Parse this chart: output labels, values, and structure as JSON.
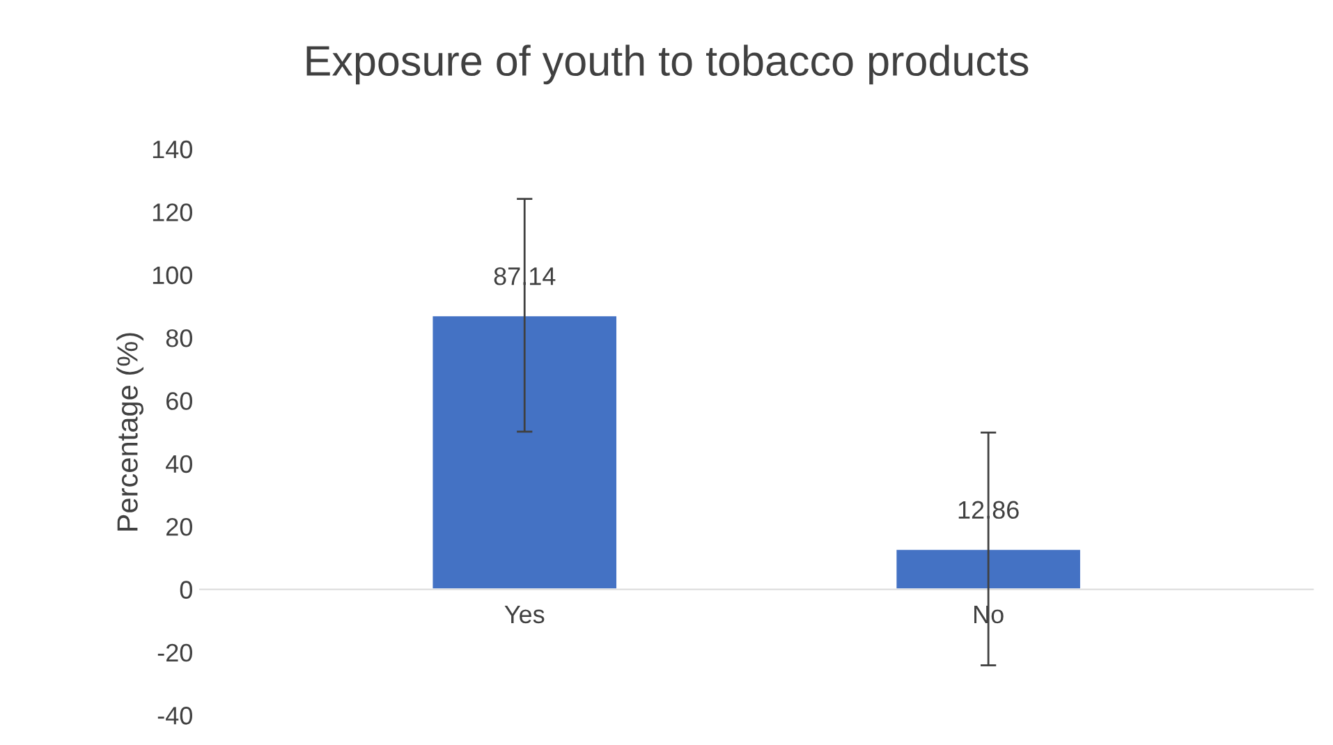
{
  "chart_data": {
    "type": "bar",
    "title": "Exposure of youth to tobacco products",
    "ylabel": "Percentage (%)",
    "categories": [
      "Yes",
      "No"
    ],
    "series": [
      {
        "color": "#4472c4",
        "values": [
          87.14,
          12.86
        ],
        "errors": [
          37,
          37
        ]
      }
    ],
    "ylim": [
      -40,
      140
    ],
    "yticks": [
      -40,
      -20,
      0,
      20,
      40,
      60,
      80,
      100,
      120,
      140
    ],
    "data_labels": true,
    "grid": false,
    "legend": false
  }
}
